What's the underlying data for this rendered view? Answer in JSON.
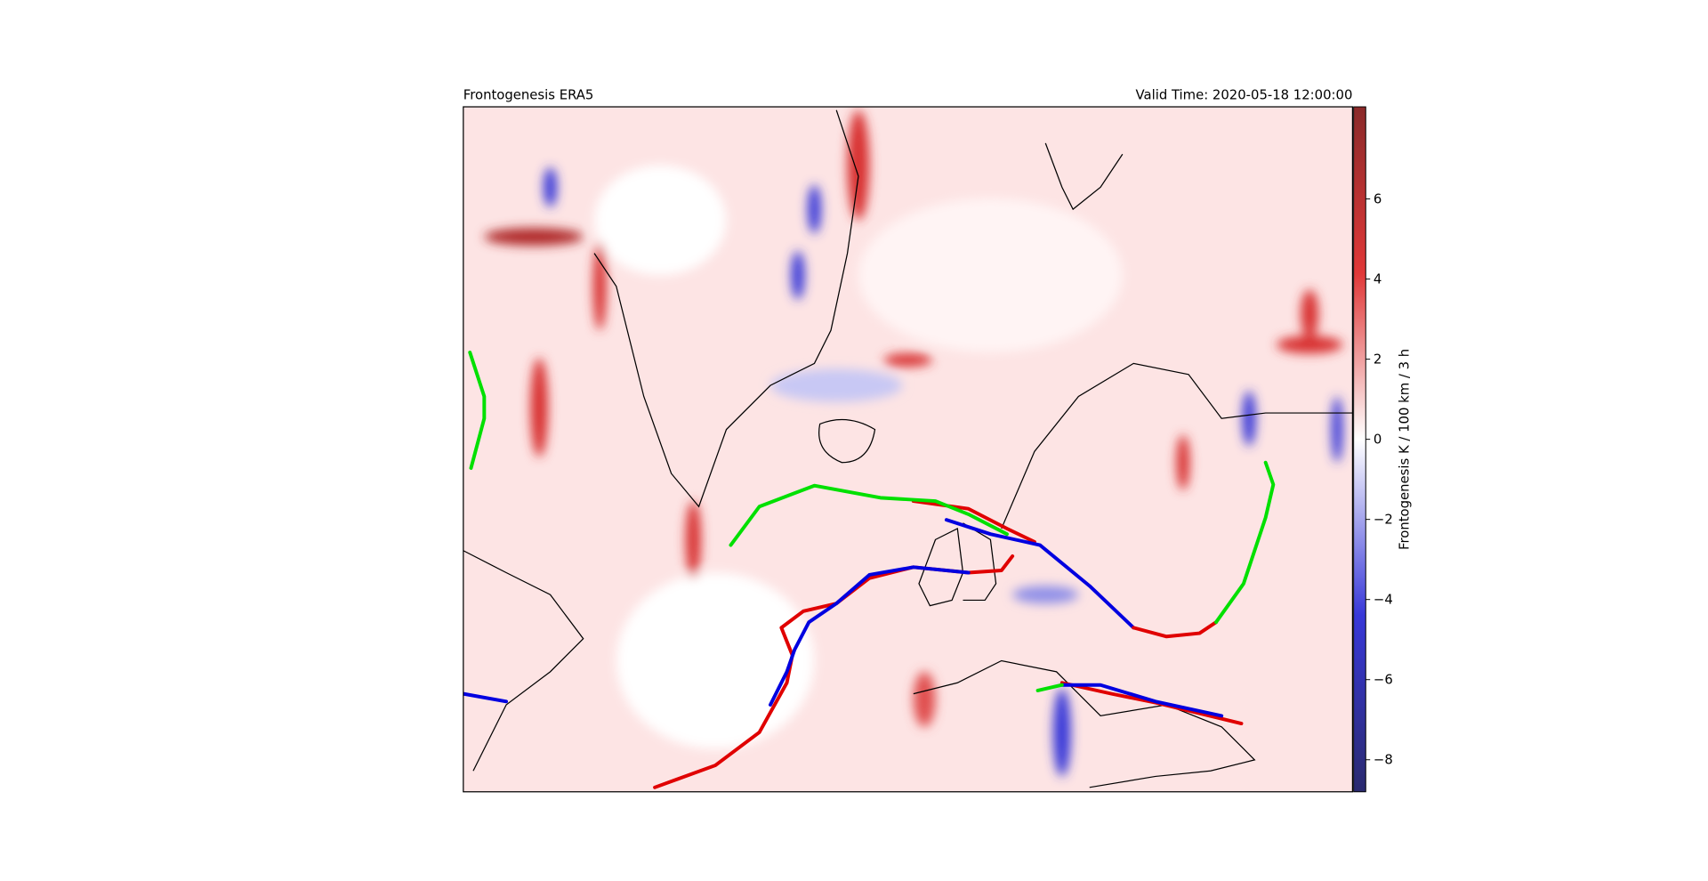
{
  "chart_data": {
    "type": "map",
    "title_left": "Frontogenesis ERA5",
    "title_right": "Valid Time: 2020-05-18 12:00:00",
    "colorbar_label": "Frontogenesis K / 100 km / 3 h",
    "colorbar_colors": [
      "#2a2a6e",
      "#3838d8",
      "#ffffff",
      "#e03838",
      "#8a2a2a"
    ],
    "ylim": [
      -8.8,
      8.3
    ],
    "yticks": [
      6,
      4,
      2,
      0,
      {
        "value": -2,
        "label": "−2"
      },
      {
        "value": -4,
        "label": "−4"
      },
      {
        "value": -6,
        "label": "−6"
      },
      {
        "value": -8,
        "label": "−8"
      }
    ]
  }
}
